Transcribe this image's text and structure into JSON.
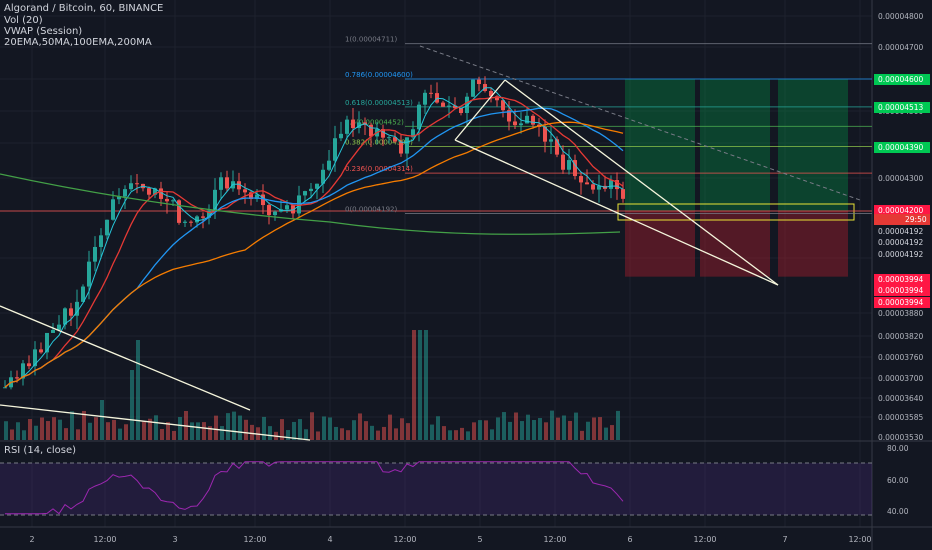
{
  "header": {
    "title": "Algorand / Bitcoin, 60, BINANCE",
    "indicators": [
      "Vol (20)",
      "VWAP (Session)",
      "20EMA,50MA,100EMA,200MA"
    ]
  },
  "rsi_label": "RSI (14, close)",
  "countdown": "29:50",
  "colors": {
    "background": "#131722",
    "up": "#26a69a",
    "down": "#ef5350",
    "ema20": "#e53935",
    "ma50": "#2196f3",
    "ema100": "#f57c00",
    "ma200": "#43a047",
    "vwap": "#26c6da",
    "rsi": "#9c27b0",
    "target_green": "#00c853",
    "stop_red": "#ff1744"
  },
  "fib_levels": [
    {
      "label": "1(0.00004711)",
      "price": 4.711e-05
    },
    {
      "label": "0.786(0.00004600)",
      "price": 4.6e-05
    },
    {
      "label": "0.618(0.00004513)",
      "price": 4.513e-05
    },
    {
      "label": "0.5(0.00004452)",
      "price": 4.452e-05
    },
    {
      "label": "0.382(0.00004390)",
      "price": 4.39e-05
    },
    {
      "label": "0.236(0.00004314)",
      "price": 4.314e-05
    },
    {
      "label": "0(0.00004192)",
      "price": 4.192e-05
    }
  ],
  "price_axis": {
    "ticks": [
      "0.00004800",
      "0.00004700",
      "0.00004500",
      "0.00004300",
      "0.00003880",
      "0.00003820",
      "0.00003760",
      "0.00003700",
      "0.00003640",
      "0.00003585",
      "0.00003530"
    ],
    "badges": [
      {
        "text": "0.00004600",
        "kind": "green"
      },
      {
        "text": "0.00004513",
        "kind": "green"
      },
      {
        "text": "0.00004390",
        "kind": "green"
      },
      {
        "text": "0.00004200",
        "kind": "red"
      },
      {
        "text": "0.00004192",
        "kind": "dark"
      },
      {
        "text": "0.00004192",
        "kind": "dark"
      },
      {
        "text": "0.00004192",
        "kind": "dark"
      },
      {
        "text": "0.00003994",
        "kind": "red"
      },
      {
        "text": "0.00003994",
        "kind": "red"
      },
      {
        "text": "0.00003994",
        "kind": "red"
      }
    ]
  },
  "rsi_axis": {
    "ticks": [
      "80.00",
      "60.00",
      "40.00"
    ],
    "upper": 70,
    "lower": 30
  },
  "time_axis": [
    "2",
    "12:00",
    "3",
    "12:00",
    "4",
    "12:00",
    "5",
    "12:00",
    "6",
    "12:00",
    "7",
    "12:00"
  ],
  "chart_data": {
    "type": "candlestick",
    "title": "Algorand / Bitcoin, 60, BINANCE",
    "ylim": [
      3.53e-05,
      4.85e-05
    ],
    "series": [
      {
        "name": "Price",
        "close_path": [
          3.7e-05,
          3.72e-05,
          3.76e-05,
          3.8e-05,
          3.86e-05,
          3.9e-05,
          4e-05,
          4.15e-05,
          4.25e-05,
          4.28e-05,
          4.3e-05,
          4.25e-05,
          4.22e-05,
          4.17e-05,
          4.19e-05,
          4.23e-05,
          4.3e-05,
          4.28e-05,
          4.25e-05,
          4.21e-05,
          4.18e-05,
          4.2e-05,
          4.25e-05,
          4.33e-05,
          4.4e-05,
          4.45e-05,
          4.48e-05,
          4.42e-05,
          4.4e-05,
          4.38e-05,
          4.5e-05,
          4.55e-05,
          4.52e-05,
          4.5e-05,
          4.58e-05,
          4.56e-05,
          4.52e-05,
          4.48e-05,
          4.46e-05,
          4.42e-05,
          4.38e-05,
          4.33e-05,
          4.3e-05,
          4.29e-05,
          4.27e-05,
          4.23e-05
        ]
      },
      {
        "name": "RSI (14, close)",
        "range": [
          30,
          72
        ]
      }
    ],
    "annotations": [
      "Fibonacci retracement 1 to 0",
      "Falling wedge",
      "Long position: target 0.00004600, stop 0.00003994"
    ]
  }
}
